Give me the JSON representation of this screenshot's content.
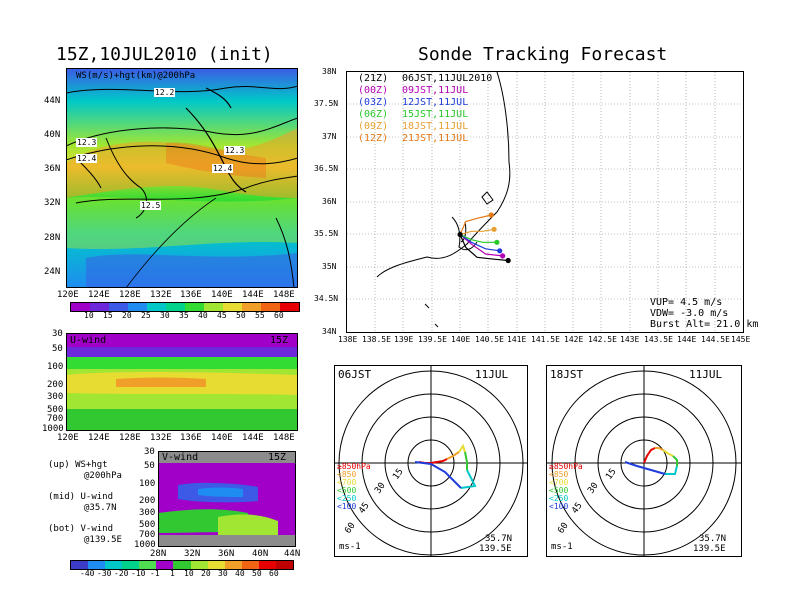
{
  "titles": {
    "left_init": "15Z,10JUL2010 (init)",
    "right_main": "Sonde Tracking Forecast"
  },
  "top_map": {
    "label": "WS(m/s)+hgt(km)@200hPa",
    "lat_ticks": [
      "44N",
      "40N",
      "36N",
      "32N",
      "28N",
      "24N"
    ],
    "lon_ticks": [
      "120E",
      "124E",
      "128E",
      "132E",
      "136E",
      "140E",
      "144E",
      "148E"
    ],
    "contour_labels": [
      "12.2",
      "12.3",
      "12.4",
      "12.3",
      "12.4",
      "12.5"
    ]
  },
  "colorbar_ws": {
    "ticks": [
      "10",
      "15",
      "20",
      "25",
      "30",
      "35",
      "40",
      "45",
      "50",
      "55",
      "60"
    ],
    "colors": [
      "#a000c8",
      "#6e28dc",
      "#3c5ae6",
      "#1e8cf0",
      "#00c8c8",
      "#00d28c",
      "#32dc32",
      "#a0e632",
      "#e6dc32",
      "#f0a028",
      "#f06414",
      "#e60000"
    ]
  },
  "u_panel": {
    "label": "U-wind",
    "time": "15Z",
    "p_ticks": [
      "30",
      "50",
      "100",
      "200",
      "300",
      "500",
      "700",
      "1000"
    ],
    "lon_ticks": [
      "120E",
      "124E",
      "128E",
      "132E",
      "136E",
      "140E",
      "144E",
      "148E"
    ]
  },
  "v_panel": {
    "label": "V-wind",
    "time": "15Z",
    "p_ticks": [
      "30",
      "50",
      "100",
      "200",
      "300",
      "500",
      "700",
      "1000"
    ],
    "lat_ticks": [
      "28N",
      "32N",
      "36N",
      "40N",
      "44N"
    ]
  },
  "legend_notes": [
    {
      "a": "(up) WS+hgt",
      "b": "@200hPa"
    },
    {
      "a": "(mid) U-wind",
      "b": "@35.7N"
    },
    {
      "a": "(bot) V-wind",
      "b": "@139.5E"
    }
  ],
  "colorbar_uv": {
    "ticks": [
      "-40",
      "-30",
      "-20",
      "-10",
      "-1",
      "1",
      "10",
      "20",
      "30",
      "40",
      "50",
      "60"
    ],
    "colors": [
      "#3c3cc8",
      "#1e8cf0",
      "#00c8c8",
      "#00d28c",
      "#50dc50",
      "#a000c8",
      "#32c832",
      "#a0e632",
      "#e6dc32",
      "#f0a028",
      "#f06414",
      "#e60000",
      "#c00000"
    ]
  },
  "track_panel": {
    "lat_ticks": [
      "38N",
      "37.5N",
      "37N",
      "36.5N",
      "36N",
      "35.5N",
      "35N",
      "34.5N",
      "34N"
    ],
    "lon_ticks": [
      "138E",
      "138.5E",
      "139E",
      "139.5E",
      "140E",
      "140.5E",
      "141E",
      "141.5E",
      "142E",
      "142.5E",
      "143E",
      "143.5E",
      "144E",
      "144.5E",
      "145E"
    ],
    "legend": [
      {
        "tag": "(21Z)",
        "text": "06JST,11JUL2010",
        "color": "#000000"
      },
      {
        "tag": "(00Z)",
        "text": "09JST,11JUL",
        "color": "#b400b4"
      },
      {
        "tag": "(03Z)",
        "text": "12JST,11JUL",
        "color": "#1e3cdc"
      },
      {
        "tag": "(06Z)",
        "text": "15JST,11JUL",
        "color": "#28c828"
      },
      {
        "tag": "(09Z)",
        "text": "18JST,11JUL",
        "color": "#e6a032"
      },
      {
        "tag": "(12Z)",
        "text": "21JST,11JUL",
        "color": "#e67814"
      }
    ],
    "params": [
      "VUP= 4.5 m/s",
      "VDW= -3.0 m/s",
      "Burst Alt= 21.0 km"
    ]
  },
  "polar_left": {
    "time": "06JST",
    "date": "11JUL",
    "rings": [
      "15",
      "30",
      "45",
      "60"
    ],
    "levels": [
      {
        "t": "≥850hPa",
        "c": "#e60000"
      },
      {
        "t": "<850",
        "c": "#f0a028"
      },
      {
        "t": "<700",
        "c": "#e6dc32"
      },
      {
        "t": "<500",
        "c": "#32c832"
      },
      {
        "t": "<250",
        "c": "#00c8c8"
      },
      {
        "t": "<100",
        "c": "#1e3cdc"
      }
    ],
    "unit": "ms-1",
    "lat": "35.7N",
    "lon": "139.5E"
  },
  "polar_right": {
    "time": "18JST",
    "date": "11JUL",
    "rings": [
      "15",
      "30",
      "45",
      "60"
    ],
    "levels": [
      {
        "t": "≥850hPa",
        "c": "#e60000"
      },
      {
        "t": "<850",
        "c": "#f0a028"
      },
      {
        "t": "<700",
        "c": "#e6dc32"
      },
      {
        "t": "<500",
        "c": "#32c832"
      },
      {
        "t": "<250",
        "c": "#00c8c8"
      },
      {
        "t": "<100",
        "c": "#1e3cdc"
      }
    ],
    "unit": "ms-1",
    "lat": "35.7N",
    "lon": "139.5E"
  },
  "chart_data": [
    {
      "type": "heatmap",
      "title": "15Z,10JUL2010 (init)",
      "subtitle": "WS(m/s)+hgt(km)@200hPa",
      "xlim": [
        "120E",
        "150E"
      ],
      "ylim": [
        "22N",
        "48N"
      ],
      "contours": [
        "12.2",
        "12.3",
        "12.4",
        "12.3",
        "12.4",
        "12.5"
      ]
    },
    {
      "type": "heatmap",
      "title": "U-wind",
      "time": "15Z",
      "note": "@35.7N"
    },
    {
      "type": "heatmap",
      "title": "V-wind",
      "time": "15Z",
      "note": "@139.5E"
    },
    {
      "type": "line",
      "title": "Sonde Tracking Forecast",
      "launch": {
        "lon": 140.0,
        "lat": 35.5
      },
      "series": [
        {
          "name": "06JST,11JUL2010",
          "color": "#000000",
          "x": [
            140.0,
            140.1,
            140.3,
            140.6,
            140.85
          ],
          "y": [
            35.5,
            35.3,
            35.15,
            35.12,
            35.1
          ]
        },
        {
          "name": "09JST,11JUL",
          "color": "#b400b4",
          "x": [
            140.0,
            140.2,
            140.45,
            140.75
          ],
          "y": [
            35.5,
            35.35,
            35.2,
            35.17
          ]
        },
        {
          "name": "12JST,11JUL",
          "color": "#1e3cdc",
          "x": [
            140.0,
            140.2,
            140.45,
            140.7
          ],
          "y": [
            35.5,
            35.38,
            35.28,
            35.25
          ]
        },
        {
          "name": "15JST,11JUL",
          "color": "#28c828",
          "x": [
            140.0,
            140.2,
            140.4,
            140.65
          ],
          "y": [
            35.5,
            35.42,
            35.38,
            35.38
          ]
        },
        {
          "name": "18JST,11JUL",
          "color": "#e6a032",
          "x": [
            140.0,
            140.2,
            140.4,
            140.6
          ],
          "y": [
            35.5,
            35.55,
            35.55,
            35.58
          ]
        },
        {
          "name": "21JST,11JUL",
          "color": "#e67814",
          "x": [
            140.0,
            140.1,
            140.3,
            140.55
          ],
          "y": [
            35.5,
            35.7,
            35.75,
            35.8
          ]
        }
      ]
    }
  ]
}
